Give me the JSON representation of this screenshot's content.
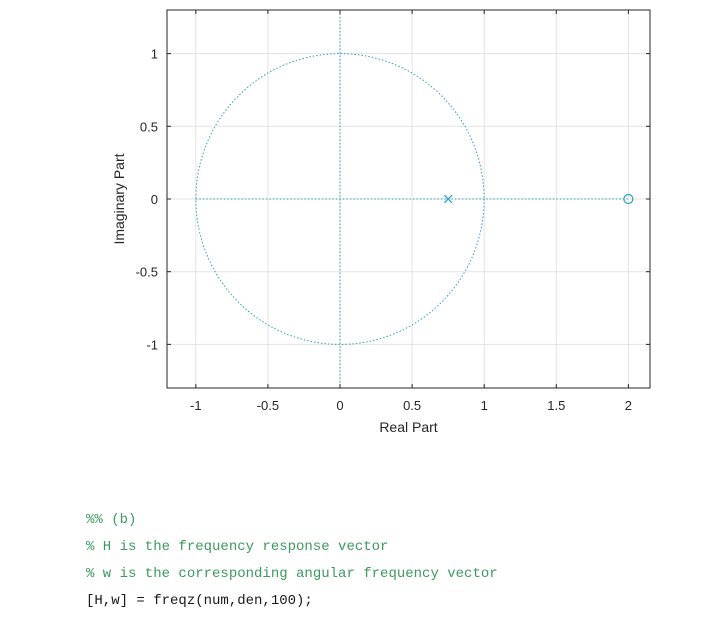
{
  "chart_data": {
    "type": "scatter",
    "title": "",
    "xlabel": "Real Part",
    "ylabel": "Imaginary Part",
    "xlim": [
      -1.2,
      2.15
    ],
    "ylim": [
      -1.3,
      1.3
    ],
    "xticks": [
      -1,
      -0.5,
      0,
      0.5,
      1,
      1.5,
      2
    ],
    "xtick_labels": [
      "-1",
      "-0.5",
      "0",
      "0.5",
      "1",
      "1.5",
      "2"
    ],
    "yticks": [
      -1,
      -0.5,
      0,
      0.5,
      1
    ],
    "ytick_labels": [
      "-1",
      "-0.5",
      "0",
      "0.5",
      "1"
    ],
    "grid": true,
    "unit_circle": true,
    "series": [
      {
        "marker": "o",
        "points": [
          {
            "x": 2,
            "y": 0
          }
        ]
      },
      {
        "marker": "x",
        "points": [
          {
            "x": 0.75,
            "y": 0
          }
        ]
      }
    ],
    "colors": {
      "marker": "#2e9ec9",
      "grid": "#e3e3e3",
      "axis": "#262626",
      "guide": "#2e9ec9"
    }
  },
  "code": [
    {
      "text": "%% (b)",
      "kind": "comment"
    },
    {
      "text": "% H is the frequency response vector",
      "kind": "comment"
    },
    {
      "text": "% w is the corresponding angular frequency vector",
      "kind": "comment"
    },
    {
      "text": "[H,w] = freqz(num,den,100);",
      "kind": "statement"
    }
  ]
}
